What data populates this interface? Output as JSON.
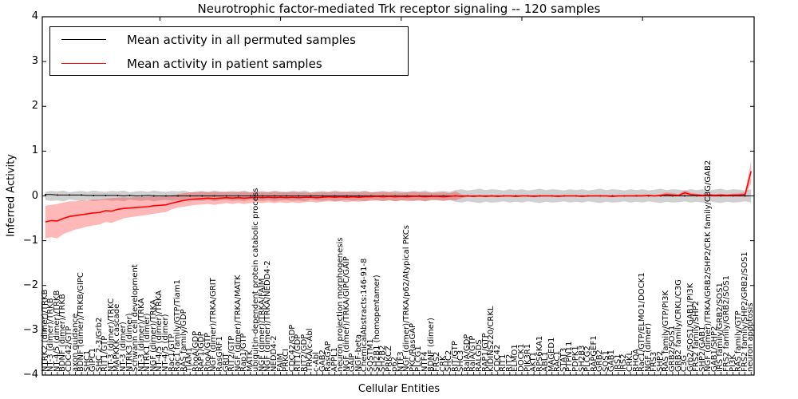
{
  "title": "Neurotrophic factor-mediated Trk receptor signaling -- 120 samples",
  "legend": {
    "permuted": "Mean activity in all permuted samples",
    "patient": "Mean activity in patient samples"
  },
  "axis": {
    "ylabel": "Inferred Activity",
    "xlabel": "Cellular Entities",
    "ylim": [
      -4,
      4
    ],
    "ytick_values": [
      4,
      3,
      2,
      1,
      0,
      -1,
      -2,
      -3,
      -4
    ],
    "ytick_labels": [
      "4",
      "3",
      "2",
      "1",
      "0",
      "−1",
      "−2",
      "−3",
      "−4"
    ]
  },
  "colors": {
    "permuted_line": "#000000",
    "permuted_band": "rgba(120,120,120,0.35)",
    "patient_line": "#ff0000",
    "patient_band": "rgba(255,40,40,0.33)",
    "frame": "#000000"
  },
  "chart_data": {
    "type": "line",
    "title": "Neurotrophic factor-mediated Trk receptor signaling -- 120 samples",
    "xlabel": "Cellular Entities",
    "ylabel": "Inferred Activity",
    "ylim": [
      -4,
      4
    ],
    "grid": false,
    "legend_position": "upper left",
    "categories": [
      "NTRK2 (dimer)/TRKB",
      "NT-3 (dimer)/TRKB",
      "NT-4/5 (dimer)/TRKB",
      "BDNF (dimer)/TRKB",
      "CDC42/GTP",
      "axon guidance",
      "BDNF (dimer)/TRKB/GIPC",
      "SHC1",
      "GIPC1",
      "SHC 2-3/Grb2",
      "RIT1/GTP",
      "NT-3 (dimer)/TRKC",
      "MAPKKK cascade",
      "NT-3 (dimer)",
      "NTRK3 (dimer)",
      "Schwann cell development",
      "NT-3 (dimer)/TRKA",
      "NTRK1 (dimer)",
      "NGF (dimer)/TRKA",
      "NT-4/5 (dimer)/TRKA",
      "NT-4/5 (dimer)",
      "Rac1/GTP",
      "Rac1 family/GTP/Tiam1",
      "RAS family/GDP",
      "TIAM1",
      "RhoA/GDP",
      "RAP1/GDP",
      "RhoA/GTP",
      "NGF (dimer)/TRKA/GRIT",
      "RasGRF1",
      "GRIT",
      "RIT2/GTP",
      "NGF (dimer)/TRKA/MATK",
      "Rap1/GTP",
      "MATK",
      "ubiquitin-dependent protein catabolic process",
      "NGF (dimer)/TRKA/FAIM",
      "NGF (dimer)/TRKA/NEDD4-2",
      "NEDD4-2",
      "FAIM",
      "PRKCI",
      "CDC42/GDP",
      "RIT1/GDP",
      "RIT2/GDP",
      "TRKA/c-Abl",
      "c-Abl",
      "GAB2",
      "RasGAP",
      "APPL1",
      "neuron projection morphogenesis",
      "NGF (dimer)/TRKA/GIPC/GAIP",
      "GAIP",
      "NGF-beta",
      "ChemicalAbstracts:146-91-8",
      "SQSTM1",
      "SH2B1 (homopentamer)",
      "SH2B2",
      "PRKCZ",
      "p62",
      "NTF3",
      "NGF (dimer)/TRKA/p62/Atypical PKCs",
      "PKC/RasGAP",
      "PLCG1",
      "NTF4",
      "BDNF (dimer)",
      "FRS2",
      "CRK",
      "SHC2",
      "RIT/GTP",
      "SHC3",
      "RalA/GDP",
      "RalA/GTP",
      "RALGDS",
      "RAP1/GTP",
      "KIDINS220/CRKL",
      "CDC42",
      "RIT1",
      "RIT2",
      "ELMO1",
      "DOCK1",
      "PIK3R1",
      "AKT1",
      "RPS6KA1",
      "ABL1",
      "MAGED1",
      "RAC1",
      "STAT3",
      "PTPN11",
      "PDPK1",
      "SH2B3",
      "PLCG2",
      "RAPGEF1",
      "GRB2",
      "SOS1",
      "GAB1",
      "IRS1",
      "IRS2",
      "CRKL",
      "RHOA",
      "Rac1/GTP/ELMO1/DOCK1",
      "NGF (dimer)",
      "FRS3",
      "SHP2",
      "RAS family/GTP/PI3K",
      "GRB2/SOS1",
      "GRB2 family/CRKL/C3G",
      "C3G",
      "Grb2/SOS1/GAB1/PI3K",
      "FRS2 family/SHP2",
      "SHP2/GAB1",
      "NGF (dimer)/TRKA/GRB2/SHP2/CRK family/C3G/GAB2",
      "GAB1/SHP2",
      "IRS family/GRB2/SOS1",
      "FRS2 family/GRB2/SOS1",
      "PI3K",
      "RAS family/GTP",
      "FRS2 family/SHP2/GRB2/SOS1",
      "neuron apoptosis"
    ],
    "series": [
      {
        "name": "Mean activity in all permuted samples",
        "color": "#000000",
        "values": [
          0.03,
          0.03,
          0.02,
          0.02,
          0.02,
          0.02,
          0.02,
          0.01,
          0.01,
          0.01,
          0.01,
          0.01,
          0.01,
          0.0,
          0.01,
          0.0,
          0.0,
          0.01,
          0.0,
          0.0,
          0.0,
          0.0,
          0.0,
          0.0,
          0.0,
          0.0,
          0.0,
          0.0,
          0.0,
          0.0,
          0.0,
          0.0,
          0.0,
          0.0,
          0.0,
          0.0,
          0.0,
          0.0,
          0.0,
          0.0,
          0.0,
          0.0,
          0.0,
          0.0,
          0.0,
          0.0,
          0.0,
          0.0,
          0.0,
          0.0,
          0.0,
          0.0,
          0.0,
          0.0,
          0.0,
          0.0,
          0.0,
          0.0,
          0.0,
          0.0,
          0.0,
          0.0,
          0.0,
          0.0,
          0.0,
          0.0,
          0.0,
          0.0,
          0.0,
          0.0,
          0.0,
          0.0,
          0.0,
          0.0,
          0.0,
          0.0,
          0.0,
          0.0,
          0.0,
          0.0,
          0.0,
          0.0,
          0.0,
          0.0,
          0.0,
          0.0,
          0.0,
          0.0,
          0.0,
          0.0,
          0.0,
          0.0,
          0.0,
          0.0,
          0.0,
          0.0,
          0.0,
          0.0,
          0.0,
          0.0,
          0.0,
          0.0,
          0.0,
          0.0,
          0.0,
          0.0,
          0.0,
          0.0,
          0.0,
          0.0,
          0.0,
          0.0,
          0.0,
          0.0,
          0.0,
          0.0,
          0.0,
          0.0
        ],
        "band_low": [
          -0.09,
          -0.11,
          -0.1,
          -0.12,
          -0.08,
          -0.1,
          -0.11,
          -0.09,
          -0.12,
          -0.1,
          -0.09,
          -0.11,
          -0.1,
          -0.12,
          -0.08,
          -0.1,
          -0.11,
          -0.09,
          -0.12,
          -0.1,
          -0.09,
          -0.11,
          -0.1,
          -0.12,
          -0.08,
          -0.1,
          -0.11,
          -0.09,
          -0.12,
          -0.1,
          -0.09,
          -0.11,
          -0.1,
          -0.12,
          -0.08,
          -0.1,
          -0.11,
          -0.09,
          -0.12,
          -0.1,
          -0.09,
          -0.11,
          -0.1,
          -0.12,
          -0.08,
          -0.1,
          -0.11,
          -0.09,
          -0.12,
          -0.1,
          -0.09,
          -0.11,
          -0.1,
          -0.12,
          -0.08,
          -0.1,
          -0.11,
          -0.09,
          -0.12,
          -0.1,
          -0.09,
          -0.11,
          -0.1,
          -0.12,
          -0.08,
          -0.1,
          -0.11,
          -0.09,
          -0.13,
          -0.15,
          -0.12,
          -0.14,
          -0.16,
          -0.13,
          -0.15,
          -0.14,
          -0.12,
          -0.15,
          -0.13,
          -0.15,
          -0.12,
          -0.14,
          -0.16,
          -0.13,
          -0.15,
          -0.14,
          -0.12,
          -0.15,
          -0.13,
          -0.15,
          -0.12,
          -0.14,
          -0.16,
          -0.13,
          -0.15,
          -0.14,
          -0.12,
          -0.15,
          -0.13,
          -0.15,
          -0.12,
          -0.14,
          -0.16,
          -0.13,
          -0.15,
          -0.14,
          -0.12,
          -0.15,
          -0.13,
          -0.15,
          -0.12,
          -0.14,
          -0.16,
          -0.13,
          -0.15,
          -0.14,
          -0.12,
          -0.15
        ],
        "band_high": [
          0.09,
          0.11,
          0.1,
          0.12,
          0.08,
          0.1,
          0.11,
          0.09,
          0.12,
          0.1,
          0.09,
          0.11,
          0.1,
          0.12,
          0.08,
          0.1,
          0.11,
          0.09,
          0.12,
          0.1,
          0.09,
          0.11,
          0.1,
          0.12,
          0.08,
          0.1,
          0.11,
          0.09,
          0.12,
          0.1,
          0.09,
          0.11,
          0.1,
          0.12,
          0.08,
          0.1,
          0.11,
          0.09,
          0.12,
          0.1,
          0.09,
          0.11,
          0.1,
          0.12,
          0.08,
          0.1,
          0.11,
          0.09,
          0.12,
          0.1,
          0.09,
          0.11,
          0.1,
          0.12,
          0.08,
          0.1,
          0.11,
          0.09,
          0.12,
          0.1,
          0.09,
          0.11,
          0.1,
          0.12,
          0.08,
          0.1,
          0.11,
          0.09,
          0.13,
          0.15,
          0.12,
          0.14,
          0.16,
          0.13,
          0.15,
          0.14,
          0.12,
          0.15,
          0.13,
          0.15,
          0.12,
          0.14,
          0.16,
          0.13,
          0.15,
          0.14,
          0.12,
          0.15,
          0.13,
          0.15,
          0.12,
          0.14,
          0.16,
          0.13,
          0.15,
          0.14,
          0.12,
          0.15,
          0.13,
          0.15,
          0.12,
          0.14,
          0.16,
          0.13,
          0.15,
          0.14,
          0.12,
          0.15,
          0.13,
          0.15,
          0.12,
          0.14,
          0.16,
          0.13,
          0.15,
          0.14,
          0.12,
          0.15
        ]
      },
      {
        "name": "Mean activity in patient samples",
        "color": "#ff0000",
        "values": [
          -0.58,
          -0.55,
          -0.56,
          -0.5,
          -0.46,
          -0.44,
          -0.42,
          -0.4,
          -0.38,
          -0.37,
          -0.33,
          -0.34,
          -0.3,
          -0.28,
          -0.27,
          -0.26,
          -0.25,
          -0.24,
          -0.22,
          -0.21,
          -0.2,
          -0.16,
          -0.13,
          -0.1,
          -0.08,
          -0.07,
          -0.06,
          -0.05,
          -0.06,
          -0.05,
          -0.04,
          -0.05,
          -0.04,
          -0.05,
          -0.04,
          -0.03,
          -0.04,
          -0.03,
          -0.04,
          -0.03,
          -0.04,
          -0.03,
          -0.04,
          -0.03,
          -0.03,
          -0.04,
          -0.03,
          -0.02,
          -0.03,
          -0.02,
          -0.03,
          -0.02,
          -0.03,
          -0.02,
          -0.02,
          -0.01,
          -0.02,
          -0.01,
          -0.02,
          -0.01,
          -0.02,
          -0.01,
          -0.01,
          -0.02,
          -0.01,
          -0.01,
          -0.02,
          -0.01,
          0.0,
          -0.01,
          0.0,
          -0.01,
          0.0,
          -0.01,
          0.0,
          -0.01,
          0.0,
          0.0,
          -0.01,
          0.0,
          0.0,
          -0.01,
          0.0,
          0.0,
          0.0,
          -0.01,
          0.0,
          0.0,
          0.0,
          -0.01,
          0.0,
          0.0,
          0.0,
          0.0,
          -0.01,
          0.0,
          0.0,
          0.0,
          0.0,
          0.0,
          0.01,
          0.0,
          0.01,
          0.03,
          0.02,
          0.01,
          0.07,
          0.03,
          0.02,
          0.01,
          0.02,
          0.01,
          0.02,
          0.01,
          0.02,
          0.02,
          0.03,
          0.55
        ],
        "band_low": [
          -0.95,
          -0.92,
          -0.95,
          -0.85,
          -0.8,
          -0.75,
          -0.72,
          -0.68,
          -0.66,
          -0.64,
          -0.58,
          -0.6,
          -0.55,
          -0.5,
          -0.48,
          -0.46,
          -0.44,
          -0.42,
          -0.4,
          -0.38,
          -0.36,
          -0.3,
          -0.26,
          -0.24,
          -0.22,
          -0.2,
          -0.19,
          -0.18,
          -0.2,
          -0.18,
          -0.16,
          -0.18,
          -0.16,
          -0.18,
          -0.16,
          -0.14,
          -0.16,
          -0.14,
          -0.16,
          -0.14,
          -0.16,
          -0.14,
          -0.16,
          -0.14,
          -0.13,
          -0.15,
          -0.13,
          -0.12,
          -0.13,
          -0.12,
          -0.14,
          -0.12,
          -0.13,
          -0.12,
          -0.11,
          -0.1,
          -0.12,
          -0.1,
          -0.12,
          -0.1,
          -0.12,
          -0.11,
          -0.1,
          -0.12,
          -0.1,
          -0.09,
          -0.11,
          -0.09,
          -0.1,
          -0.05,
          -0.02,
          -0.03,
          -0.02,
          -0.03,
          -0.02,
          -0.03,
          -0.02,
          -0.02,
          -0.03,
          -0.02,
          -0.02,
          -0.03,
          -0.02,
          -0.02,
          -0.02,
          -0.03,
          -0.02,
          -0.02,
          -0.02,
          -0.03,
          -0.02,
          -0.02,
          -0.02,
          -0.02,
          -0.03,
          -0.02,
          -0.02,
          -0.02,
          -0.02,
          -0.02,
          -0.01,
          -0.02,
          -0.01,
          0.0,
          -0.01,
          -0.01,
          0.02,
          0.0,
          -0.01,
          -0.02,
          -0.01,
          -0.02,
          -0.01,
          -0.02,
          -0.01,
          -0.02,
          -0.01,
          0.28
        ],
        "band_high": [
          -0.22,
          -0.2,
          -0.18,
          -0.15,
          -0.12,
          -0.12,
          -0.1,
          -0.1,
          -0.08,
          -0.08,
          -0.06,
          -0.05,
          -0.04,
          -0.03,
          -0.04,
          -0.02,
          -0.03,
          -0.02,
          -0.01,
          -0.02,
          0.0,
          0.02,
          0.04,
          0.06,
          0.08,
          0.08,
          0.09,
          0.08,
          0.09,
          0.08,
          0.09,
          0.08,
          0.08,
          0.09,
          0.08,
          0.09,
          0.08,
          0.08,
          0.09,
          0.08,
          0.08,
          0.09,
          0.08,
          0.08,
          0.07,
          0.08,
          0.08,
          0.08,
          0.09,
          0.08,
          0.09,
          0.08,
          0.08,
          0.09,
          0.08,
          0.08,
          0.09,
          0.08,
          0.08,
          0.07,
          0.08,
          0.09,
          0.08,
          0.08,
          0.07,
          0.07,
          0.08,
          0.06,
          0.1,
          0.03,
          0.02,
          0.02,
          0.02,
          0.02,
          0.02,
          0.02,
          0.02,
          0.02,
          0.02,
          0.02,
          0.02,
          0.02,
          0.02,
          0.02,
          0.02,
          0.02,
          0.02,
          0.02,
          0.02,
          0.02,
          0.02,
          0.02,
          0.02,
          0.02,
          0.02,
          0.02,
          0.02,
          0.02,
          0.03,
          0.03,
          0.03,
          0.02,
          0.04,
          0.08,
          0.06,
          0.04,
          0.13,
          0.07,
          0.05,
          0.04,
          0.05,
          0.04,
          0.05,
          0.04,
          0.05,
          0.06,
          0.08,
          0.78
        ]
      }
    ]
  }
}
